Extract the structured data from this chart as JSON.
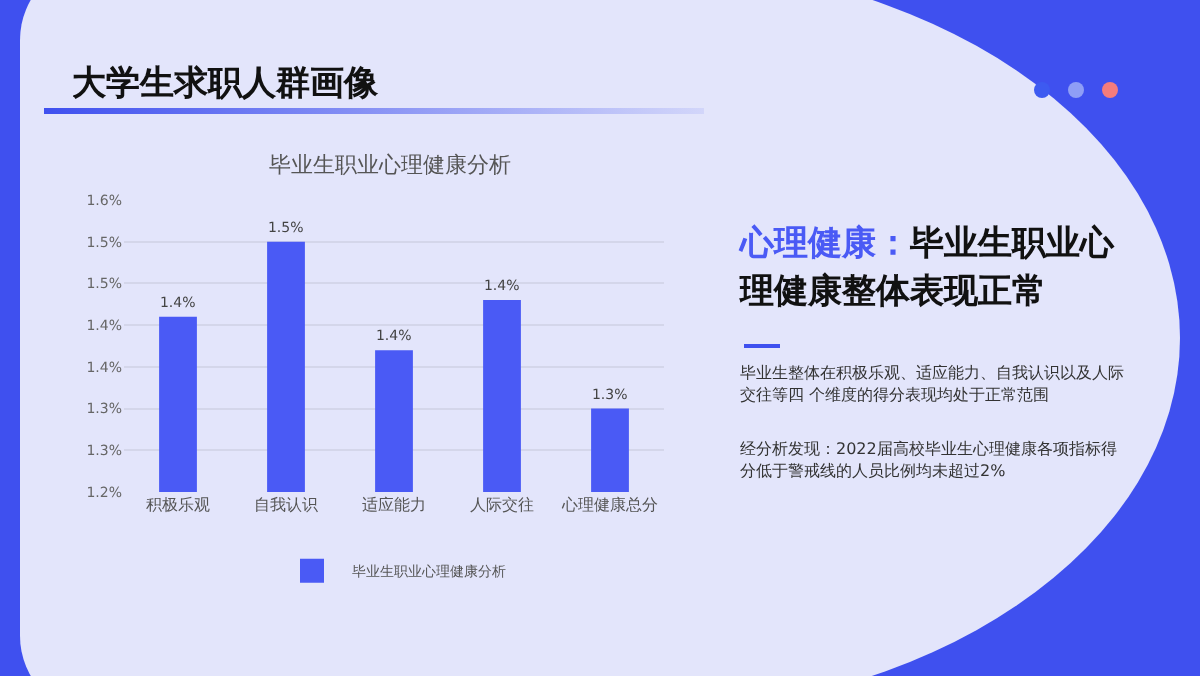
{
  "chart_data": {
    "type": "bar",
    "title": "毕业生职业心理健康分析",
    "categories": [
      "积极乐观",
      "自我认识",
      "适应能力",
      "人际交往",
      "心理健康总分"
    ],
    "series": [
      {
        "name": "毕业生职业心理健康分析",
        "color": "#4a5af5",
        "values": [
          1.41,
          1.5,
          1.37,
          1.43,
          1.3
        ],
        "value_labels": [
          "1.4%",
          "1.5%",
          "1.4%",
          "1.4%",
          "1.3%"
        ]
      }
    ],
    "ylim": [
      1.2,
      1.55
    ],
    "yticks": [
      {
        "value": 1.2,
        "label": "1.2%"
      },
      {
        "value": 1.25,
        "label": "1.3%"
      },
      {
        "value": 1.3,
        "label": "1.3%"
      },
      {
        "value": 1.35,
        "label": "1.4%"
      },
      {
        "value": 1.4,
        "label": "1.4%"
      },
      {
        "value": 1.45,
        "label": "1.5%"
      },
      {
        "value": 1.5,
        "label": "1.5%"
      },
      {
        "value": 1.55,
        "label": "1.6%"
      }
    ],
    "grid": "y",
    "legend": "bottom",
    "annotations": [
      "大学生求职人群画像",
      "心理健康：",
      "毕业生职业心理健康整体表现正常",
      "毕业生整体在积极乐观、适应能力、自我认识以及人际交往等四 个维度的得分表现均处于正常范围",
      "经分析发现：2022届高校毕业生心理健康各项指标得分低于警戒线的人员比例均未超过2%"
    ]
  }
}
